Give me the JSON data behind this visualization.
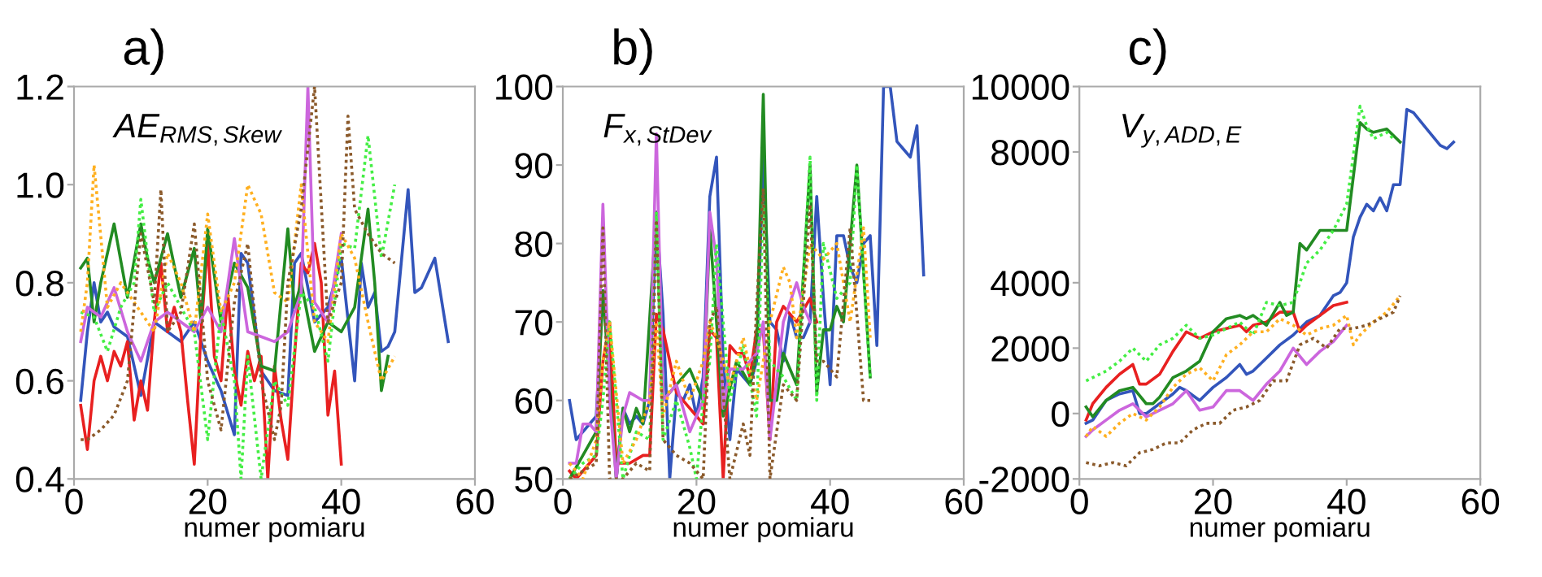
{
  "chart_data": [
    {
      "type": "line",
      "title": "a)",
      "xlabel": "numer pomiaru",
      "annotations": [
        "AE$_{RMS,Skew}$"
      ],
      "xlim": [
        0,
        60
      ],
      "xticks": [
        0,
        20,
        40,
        60
      ],
      "ylim": [
        0.4,
        1.2
      ],
      "yticks": [
        {
          "value": 0.4,
          "label": "0.4"
        },
        {
          "value": 0.6,
          "label": "0.6"
        },
        {
          "value": 0.8,
          "label": "0.8"
        },
        {
          "value": 1.0,
          "label": "1.0"
        },
        {
          "value": 1.2,
          "label": "1.2"
        }
      ],
      "grid": false,
      "series": [
        {
          "color": "#3355bb",
          "line_style": "solid",
          "x": [
            1,
            2,
            3,
            4,
            5,
            6,
            8,
            10,
            12,
            14,
            16,
            18,
            20,
            22,
            24,
            25,
            26,
            28,
            30,
            32,
            33,
            34,
            36,
            38,
            40,
            42,
            43,
            44,
            45,
            46,
            47,
            48,
            50,
            51,
            52,
            54,
            56
          ],
          "values": [
            0.56,
            0.7,
            0.8,
            0.72,
            0.74,
            0.71,
            0.69,
            0.57,
            0.72,
            0.7,
            0.68,
            0.72,
            0.64,
            0.58,
            0.49,
            0.86,
            0.84,
            0.62,
            0.58,
            0.57,
            0.84,
            0.86,
            0.72,
            0.75,
            0.85,
            0.6,
            0.84,
            0.75,
            0.78,
            0.66,
            0.67,
            0.7,
            0.99,
            0.78,
            0.79,
            0.85,
            0.68
          ]
        },
        {
          "color": "#e82020",
          "line_style": "solid",
          "x": [
            1,
            2,
            3,
            4,
            5,
            6,
            7,
            8,
            9,
            10,
            11,
            12,
            13,
            14,
            15,
            16,
            17,
            18,
            19,
            20,
            21,
            22,
            23,
            24,
            25,
            26,
            27,
            28,
            29,
            30,
            31,
            32,
            33,
            34,
            35,
            36,
            37,
            38,
            39,
            40
          ],
          "values": [
            0.55,
            0.46,
            0.6,
            0.65,
            0.6,
            0.66,
            0.63,
            0.68,
            0.52,
            0.6,
            0.54,
            0.72,
            0.84,
            0.7,
            0.75,
            0.7,
            0.56,
            0.43,
            0.7,
            0.88,
            0.65,
            0.6,
            0.78,
            0.62,
            0.55,
            0.66,
            0.6,
            0.65,
            0.4,
            0.63,
            0.52,
            0.44,
            0.65,
            0.84,
            0.82,
            0.88,
            0.8,
            0.53,
            0.62,
            0.43
          ]
        },
        {
          "color": "#228b22",
          "line_style": "solid",
          "x": [
            1,
            2,
            3,
            4,
            6,
            8,
            10,
            11,
            12,
            14,
            16,
            18,
            19,
            20,
            22,
            24,
            26,
            28,
            30,
            32,
            33,
            34,
            36,
            38,
            40,
            42,
            44,
            45,
            46,
            47
          ],
          "values": [
            0.83,
            0.85,
            0.72,
            0.8,
            0.92,
            0.77,
            0.92,
            0.85,
            0.8,
            0.9,
            0.77,
            0.87,
            0.72,
            0.91,
            0.72,
            0.84,
            0.79,
            0.63,
            0.62,
            0.91,
            0.75,
            0.8,
            0.66,
            0.72,
            0.7,
            0.75,
            0.95,
            0.8,
            0.58,
            0.65
          ]
        },
        {
          "color": "#44ee44",
          "line_style": "dotted",
          "x": [
            1,
            3,
            5,
            7,
            9,
            10,
            12,
            14,
            16,
            18,
            20,
            22,
            24,
            25,
            26,
            28,
            30,
            32,
            34,
            36,
            38,
            40,
            42,
            44,
            46,
            48
          ],
          "values": [
            0.74,
            0.73,
            0.66,
            0.75,
            0.8,
            0.97,
            0.74,
            0.8,
            0.75,
            0.7,
            0.48,
            0.74,
            0.6,
            0.4,
            0.65,
            0.4,
            0.6,
            0.55,
            0.78,
            0.75,
            0.64,
            0.88,
            0.87,
            1.1,
            0.85,
            1.0
          ]
        },
        {
          "color": "#ffb020",
          "line_style": "dotted",
          "x": [
            1,
            2,
            3,
            5,
            7,
            9,
            12,
            14,
            16,
            18,
            20,
            22,
            24,
            26,
            28,
            30,
            32,
            34,
            36,
            38,
            40,
            42,
            44,
            46,
            48
          ],
          "values": [
            0.7,
            0.8,
            1.04,
            0.75,
            0.8,
            0.76,
            0.7,
            0.86,
            0.8,
            0.7,
            0.94,
            0.74,
            0.8,
            1.0,
            0.94,
            0.78,
            0.76,
            1.0,
            0.72,
            0.68,
            0.9,
            0.85,
            0.72,
            0.6,
            0.65
          ]
        },
        {
          "color": "#8b5a2b",
          "line_style": "dotted",
          "x": [
            1,
            2,
            4,
            6,
            8,
            10,
            12,
            13,
            14,
            16,
            18,
            20,
            22,
            24,
            26,
            28,
            30,
            31,
            32,
            34,
            36,
            38,
            40,
            41,
            42,
            44,
            46,
            48
          ],
          "values": [
            0.48,
            0.48,
            0.5,
            0.53,
            0.6,
            0.9,
            0.76,
            0.99,
            0.7,
            0.74,
            0.92,
            0.6,
            0.5,
            0.76,
            0.88,
            0.6,
            0.48,
            0.55,
            0.8,
            0.95,
            1.2,
            0.72,
            0.8,
            1.14,
            0.95,
            0.9,
            0.86,
            0.84
          ]
        },
        {
          "color": "#cc66dd",
          "line_style": "solid",
          "x": [
            1,
            2,
            4,
            6,
            8,
            10,
            12,
            14,
            16,
            18,
            20,
            22,
            24,
            26,
            28,
            30,
            32,
            34,
            35,
            36,
            38,
            40
          ],
          "values": [
            0.68,
            0.75,
            0.73,
            0.79,
            0.7,
            0.64,
            0.72,
            0.74,
            0.72,
            0.7,
            0.75,
            0.7,
            0.89,
            0.7,
            0.69,
            0.68,
            0.7,
            0.78,
            1.2,
            0.76,
            0.72,
            0.9
          ]
        }
      ]
    },
    {
      "type": "line",
      "title": "b)",
      "xlabel": "numer pomiaru",
      "annotations": [
        "F$_{x,StDev}$"
      ],
      "xlim": [
        0,
        60
      ],
      "xticks": [
        0,
        20,
        40,
        60
      ],
      "ylim": [
        50,
        100
      ],
      "yticks": [
        50,
        60,
        70,
        80,
        90,
        100
      ],
      "grid": false,
      "series": [
        {
          "color": "#3355bb",
          "line_style": "solid",
          "x": [
            1,
            2,
            3,
            4,
            5,
            6,
            7,
            8,
            9,
            10,
            11,
            12,
            13,
            14,
            15,
            16,
            17,
            18,
            19,
            20,
            21,
            22,
            23,
            24,
            25,
            26,
            27,
            28,
            29,
            30,
            31,
            32,
            33,
            34,
            35,
            36,
            37,
            38,
            39,
            40,
            41,
            42,
            43,
            44,
            45,
            46,
            47,
            48,
            49,
            50,
            51,
            52,
            53,
            54
          ],
          "values": [
            60,
            55,
            56,
            57,
            58,
            74,
            68,
            50,
            59,
            57,
            58,
            57,
            60,
            84,
            71,
            50,
            61,
            60,
            62,
            58,
            63,
            86,
            91,
            65,
            55,
            64,
            63,
            62,
            65,
            91,
            70,
            69,
            65,
            71,
            68,
            68,
            70,
            86,
            73,
            62,
            81,
            81,
            77,
            75,
            80,
            81,
            67,
            100,
            100,
            93,
            92,
            91,
            95,
            76
          ]
        },
        {
          "color": "#e82020",
          "line_style": "solid",
          "x": [
            1,
            2,
            4,
            5,
            6,
            7,
            8,
            9,
            10,
            12,
            13,
            14,
            15,
            17,
            19,
            21,
            22,
            23,
            24,
            25,
            26,
            27,
            28,
            29,
            30,
            31,
            32,
            33,
            35,
            37,
            38
          ],
          "values": [
            51,
            50,
            52,
            53,
            65,
            70,
            52,
            52,
            52,
            53,
            53,
            71,
            69,
            61,
            59,
            57,
            69,
            68,
            50,
            67,
            66,
            66,
            63,
            69,
            69,
            55,
            70,
            72,
            70,
            73,
            70
          ]
        },
        {
          "color": "#228b22",
          "line_style": "solid",
          "x": [
            1,
            3,
            5,
            6,
            8,
            9,
            10,
            11,
            12,
            14,
            15,
            17,
            19,
            21,
            22,
            23,
            24,
            26,
            28,
            29,
            30,
            31,
            32,
            33,
            35,
            37,
            38,
            39,
            40,
            41,
            42,
            43,
            44,
            46
          ],
          "values": [
            50,
            53,
            56,
            74,
            50,
            59,
            56,
            59,
            57,
            84,
            60,
            62,
            64,
            60,
            82,
            70,
            58,
            65,
            62,
            66,
            99,
            60,
            60,
            66,
            62,
            90,
            61,
            69,
            69,
            72,
            70,
            80,
            90,
            63
          ]
        },
        {
          "color": "#44ee44",
          "line_style": "dotted",
          "x": [
            1,
            3,
            5,
            6,
            7,
            9,
            11,
            13,
            14,
            15,
            17,
            19,
            20,
            21,
            22,
            23,
            25,
            27,
            29,
            30,
            31,
            33,
            35,
            37,
            38,
            39,
            41,
            43,
            44,
            46
          ],
          "values": [
            50,
            52,
            53,
            60,
            70,
            50,
            56,
            55,
            84,
            55,
            60,
            54,
            50,
            60,
            65,
            80,
            60,
            67,
            58,
            85,
            65,
            63,
            60,
            91,
            60,
            80,
            73,
            75,
            90,
            63
          ]
        },
        {
          "color": "#ffb020",
          "line_style": "dotted",
          "x": [
            1,
            3,
            5,
            6,
            7,
            9,
            11,
            13,
            14,
            15,
            17,
            19,
            21,
            22,
            23,
            25,
            27,
            29,
            31,
            33,
            34,
            35,
            37,
            39,
            41,
            43,
            45,
            46
          ],
          "values": [
            52,
            50,
            55,
            65,
            70,
            52,
            55,
            60,
            70,
            58,
            65,
            60,
            65,
            70,
            68,
            62,
            68,
            60,
            70,
            77,
            75,
            68,
            80,
            78,
            80,
            70,
            82,
            68
          ]
        },
        {
          "color": "#8b5a2b",
          "line_style": "dotted",
          "x": [
            1,
            3,
            5,
            6,
            7,
            9,
            11,
            13,
            14,
            15,
            17,
            19,
            21,
            22,
            23,
            25,
            27,
            28,
            29,
            30,
            31,
            33,
            35,
            37,
            38,
            39,
            41,
            43,
            45,
            46
          ],
          "values": [
            50,
            51,
            52,
            82,
            50,
            50,
            52,
            51,
            83,
            55,
            53,
            52,
            50,
            70,
            72,
            50,
            57,
            53,
            72,
            87,
            50,
            62,
            60,
            85,
            65,
            65,
            63,
            82,
            60,
            60
          ]
        },
        {
          "color": "#cc66dd",
          "line_style": "solid",
          "x": [
            1,
            2,
            3,
            4,
            5,
            6,
            7,
            8,
            9,
            10,
            12,
            13,
            14,
            15,
            17,
            19,
            21,
            22,
            23,
            24,
            25,
            27,
            29,
            30,
            31,
            33,
            35,
            36,
            37
          ],
          "values": [
            52,
            52,
            57,
            57,
            56,
            85,
            60,
            50,
            58,
            61,
            60,
            60,
            94,
            60,
            62,
            56,
            60,
            84,
            78,
            59,
            64,
            64,
            66,
            70,
            55,
            70,
            75,
            72,
            70
          ]
        }
      ]
    },
    {
      "type": "line",
      "title": "c)",
      "xlabel": "numer pomiaru",
      "annotations": [
        "V$_{y,ADD,E}$"
      ],
      "xlim": [
        0,
        60
      ],
      "xticks": [
        0,
        20,
        40,
        60
      ],
      "ylim": [
        -2000,
        10000
      ],
      "yticks": [
        -2000,
        0,
        2000,
        4000,
        8000,
        10000
      ],
      "grid": false,
      "series": [
        {
          "color": "#3355bb",
          "line_style": "solid",
          "x": [
            1,
            2,
            4,
            6,
            8,
            9,
            10,
            12,
            14,
            15,
            16,
            18,
            20,
            22,
            24,
            25,
            26,
            28,
            30,
            32,
            34,
            36,
            37,
            38,
            39,
            40,
            41,
            42,
            43,
            44,
            45,
            46,
            47,
            48,
            49,
            50,
            52,
            54,
            55,
            56
          ],
          "values": [
            -300,
            -200,
            400,
            600,
            700,
            0,
            0,
            300,
            600,
            800,
            700,
            400,
            800,
            1100,
            1500,
            1200,
            1300,
            1700,
            2100,
            2400,
            2800,
            3000,
            3300,
            3600,
            3700,
            4000,
            5400,
            6000,
            6400,
            6200,
            6600,
            6200,
            7000,
            7000,
            9300,
            9200,
            8700,
            8200,
            8100,
            8300
          ]
        },
        {
          "color": "#e82020",
          "line_style": "solid",
          "x": [
            1,
            2,
            4,
            6,
            8,
            9,
            10,
            12,
            14,
            16,
            18,
            20,
            22,
            24,
            25,
            26,
            28,
            30,
            32,
            33,
            34,
            36,
            38,
            40
          ],
          "values": [
            -200,
            300,
            800,
            1200,
            1500,
            900,
            900,
            1200,
            1900,
            2500,
            2300,
            2500,
            2600,
            2700,
            2500,
            2700,
            2800,
            3100,
            3100,
            2500,
            2700,
            3000,
            3300,
            3400
          ]
        },
        {
          "color": "#228b22",
          "line_style": "solid",
          "x": [
            1,
            2,
            4,
            6,
            8,
            10,
            11,
            12,
            14,
            16,
            18,
            20,
            22,
            24,
            25,
            26,
            28,
            30,
            31,
            32,
            33,
            34,
            36,
            38,
            40,
            42,
            43,
            44,
            46,
            48
          ],
          "values": [
            200,
            -100,
            400,
            700,
            800,
            300,
            300,
            500,
            1100,
            1300,
            1600,
            2500,
            2900,
            3000,
            2900,
            3000,
            2700,
            3400,
            3000,
            3100,
            5200,
            5000,
            5600,
            5600,
            5600,
            8900,
            8700,
            8600,
            8700,
            8300
          ]
        },
        {
          "color": "#44ee44",
          "line_style": "dotted",
          "x": [
            1,
            2,
            4,
            6,
            8,
            10,
            12,
            14,
            16,
            18,
            20,
            22,
            24,
            26,
            28,
            30,
            32,
            34,
            36,
            38,
            40,
            42,
            43,
            44,
            46,
            47
          ],
          "values": [
            1000,
            1100,
            1300,
            1600,
            2000,
            1600,
            2100,
            2300,
            2700,
            2300,
            2400,
            2600,
            2800,
            2400,
            3400,
            3300,
            3400,
            4600,
            5000,
            5600,
            6400,
            9400,
            8800,
            8400,
            8600,
            8400
          ]
        },
        {
          "color": "#ffb020",
          "line_style": "dotted",
          "x": [
            1,
            2,
            4,
            6,
            8,
            10,
            12,
            14,
            16,
            18,
            20,
            22,
            24,
            26,
            28,
            30,
            32,
            34,
            36,
            38,
            40,
            41,
            42,
            44,
            46,
            48
          ],
          "values": [
            -700,
            -400,
            -700,
            -300,
            0,
            -200,
            200,
            800,
            1200,
            1400,
            1000,
            1800,
            2100,
            2500,
            2500,
            2900,
            2700,
            2400,
            2600,
            2700,
            3000,
            2100,
            2400,
            2800,
            3100,
            3600
          ]
        },
        {
          "color": "#8b5a2b",
          "line_style": "dotted",
          "x": [
            1,
            3,
            5,
            7,
            9,
            11,
            13,
            15,
            17,
            19,
            21,
            23,
            25,
            27,
            29,
            31,
            33,
            35,
            37,
            39,
            41,
            43,
            45,
            47,
            48
          ],
          "values": [
            -1500,
            -1600,
            -1500,
            -1600,
            -1200,
            -1100,
            -900,
            -900,
            -500,
            -300,
            -300,
            100,
            200,
            400,
            1000,
            1000,
            2100,
            2300,
            2000,
            2600,
            2600,
            2700,
            2900,
            3100,
            3600
          ]
        },
        {
          "color": "#cc66dd",
          "line_style": "solid",
          "x": [
            1,
            2,
            4,
            6,
            8,
            10,
            12,
            14,
            16,
            18,
            20,
            22,
            24,
            26,
            28,
            30,
            32,
            34,
            36,
            38,
            40
          ],
          "values": [
            -700,
            -500,
            -200,
            100,
            300,
            -100,
            100,
            300,
            700,
            100,
            200,
            700,
            700,
            400,
            900,
            1300,
            2000,
            1500,
            1900,
            2200,
            2700
          ]
        }
      ]
    }
  ]
}
